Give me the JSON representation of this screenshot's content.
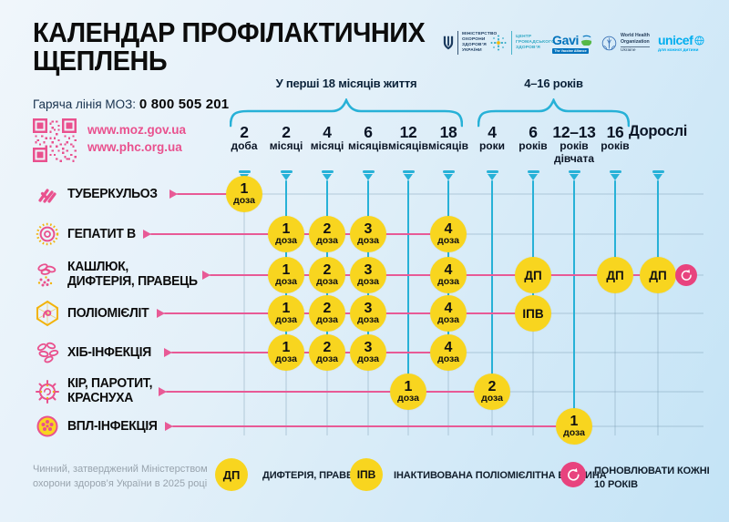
{
  "header": {
    "title": "КАЛЕНДАР ПРОФІЛАКТИЧНИХ ЩЕПЛЕНЬ",
    "hotline_label": "Гаряча лінія МОЗ:",
    "hotline_number": "0 800 505 201",
    "links": [
      "www.moz.gov.ua",
      "www.phc.org.ua"
    ],
    "logos": [
      {
        "name": "ministry-of-health",
        "lines": [
          "МІНІСТЕРСТВО",
          "ОХОРОНИ",
          "ЗДОРОВ’Я",
          "УКРАЇНИ"
        ]
      },
      {
        "name": "public-health-center",
        "lines": [
          "ЦЕНТР",
          "ГРОМАДСЬКОГО",
          "ЗДОРОВ’Я"
        ]
      },
      {
        "name": "gavi",
        "text": "Gavi",
        "tagline": "The Vaccine Alliance"
      },
      {
        "name": "who",
        "lines": [
          "World Health",
          "Organization"
        ],
        "tagline": "Ukraine"
      },
      {
        "name": "unicef",
        "text": "unicef",
        "tagline": "для кожної дитини"
      }
    ]
  },
  "chart_data": {
    "type": "table",
    "title": "КАЛЕНДАР ПРОФІЛАКТИЧНИХ ЩЕПЛЕНЬ",
    "age_groups": [
      {
        "label": "У перші 18 місяців життя",
        "from_col": 0,
        "to_col": 5
      },
      {
        "label": "4–16 років",
        "from_col": 6,
        "to_col": 9
      }
    ],
    "columns": [
      {
        "main": "2",
        "sub": "доба"
      },
      {
        "main": "2",
        "sub": "місяці"
      },
      {
        "main": "4",
        "sub": "місяці"
      },
      {
        "main": "6",
        "sub": "місяців"
      },
      {
        "main": "12",
        "sub": "місяців"
      },
      {
        "main": "18",
        "sub": "місяців"
      },
      {
        "main": "4",
        "sub": "роки"
      },
      {
        "main": "6",
        "sub": "років"
      },
      {
        "main": "12–13",
        "sub": "років",
        "sub2": "дівчата"
      },
      {
        "main": "16",
        "sub": "років"
      },
      {
        "main": "Дорослі",
        "sub": "",
        "wide": true
      }
    ],
    "rows": [
      {
        "name_lines": [
          "ТУБЕРКУЛЬОЗ"
        ],
        "icon": "tuberculosis-icon",
        "doses": [
          {
            "col": 0,
            "label": "1",
            "sub": "доза"
          }
        ]
      },
      {
        "name_lines": [
          "ГЕПАТИТ В"
        ],
        "icon": "hepatitis-b-icon",
        "doses": [
          {
            "col": 1,
            "label": "1",
            "sub": "доза"
          },
          {
            "col": 2,
            "label": "2",
            "sub": "доза"
          },
          {
            "col": 3,
            "label": "3",
            "sub": "доза"
          },
          {
            "col": 5,
            "label": "4",
            "sub": "доза"
          }
        ]
      },
      {
        "name_lines": [
          "КАШЛЮК,",
          "ДИФТЕРІЯ, ПРАВЕЦЬ"
        ],
        "icon": "pertussis-diphtheria-tetanus-icon",
        "doses": [
          {
            "col": 1,
            "label": "1",
            "sub": "доза"
          },
          {
            "col": 2,
            "label": "2",
            "sub": "доза"
          },
          {
            "col": 3,
            "label": "3",
            "sub": "доза"
          },
          {
            "col": 5,
            "label": "4",
            "sub": "доза"
          },
          {
            "col": 7,
            "label": "ДП"
          },
          {
            "col": 9,
            "label": "ДП"
          },
          {
            "col": 10,
            "label": "ДП"
          }
        ],
        "repeat_badge": true
      },
      {
        "name_lines": [
          "ПОЛІОМІЄЛІТ"
        ],
        "icon": "polio-icon",
        "doses": [
          {
            "col": 1,
            "label": "1",
            "sub": "доза"
          },
          {
            "col": 2,
            "label": "2",
            "sub": "доза"
          },
          {
            "col": 3,
            "label": "3",
            "sub": "доза"
          },
          {
            "col": 5,
            "label": "4",
            "sub": "доза"
          },
          {
            "col": 7,
            "label": "ІПВ"
          }
        ]
      },
      {
        "name_lines": [
          "ХІБ-ІНФЕКЦІЯ"
        ],
        "icon": "hib-icon",
        "doses": [
          {
            "col": 1,
            "label": "1",
            "sub": "доза"
          },
          {
            "col": 2,
            "label": "2",
            "sub": "доза"
          },
          {
            "col": 3,
            "label": "3",
            "sub": "доза"
          },
          {
            "col": 5,
            "label": "4",
            "sub": "доза"
          }
        ]
      },
      {
        "name_lines": [
          "КІР, ПАРОТИТ,",
          "КРАСНУХА"
        ],
        "icon": "measles-mumps-rubella-icon",
        "doses": [
          {
            "col": 4,
            "label": "1",
            "sub": "доза"
          },
          {
            "col": 6,
            "label": "2",
            "sub": "доза"
          }
        ]
      },
      {
        "name_lines": [
          "ВПЛ-ІНФЕКЦІЯ"
        ],
        "icon": "hpv-icon",
        "doses": [
          {
            "col": 8,
            "label": "1",
            "sub": "доза"
          }
        ]
      }
    ]
  },
  "legend": {
    "items": [
      {
        "badge": "ДП",
        "text": "ДИФТЕРІЯ, ПРАВЕЦЬ"
      },
      {
        "badge": "ІПВ",
        "text": "ІНАКТИВОВАНА ПОЛІОМІЄЛІТНА ВАКЦИНА"
      },
      {
        "icon": "refresh-icon",
        "text_lines": [
          "ПОНОВЛЮВАТИ КОЖНІ",
          "10 РОКІВ"
        ]
      }
    ]
  },
  "footer": {
    "note": "Чинний, затверджений Міністерством охорони здоров’я України в 2025 році"
  },
  "colors": {
    "pink": "#e85a96",
    "teal": "#27b1d7",
    "yellow": "#f8d51f",
    "refresh_pink": "#e8437e"
  }
}
